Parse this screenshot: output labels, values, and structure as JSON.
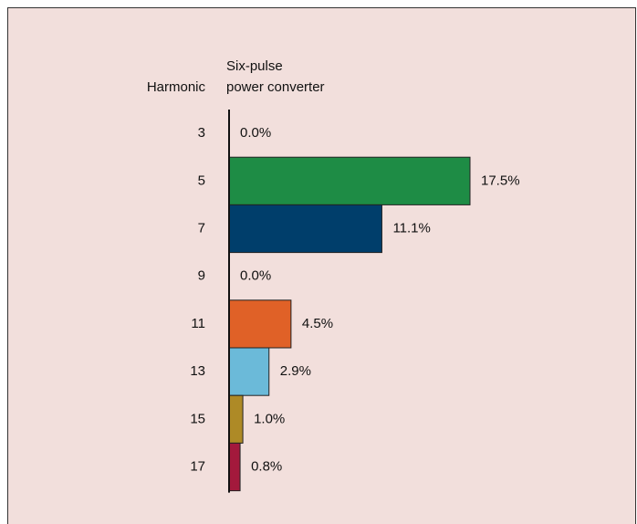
{
  "chart_data": {
    "type": "bar",
    "orientation": "horizontal",
    "category_axis_title": "Harmonic",
    "value_axis_title": [
      "Six-pulse",
      "power converter"
    ],
    "categories": [
      "3",
      "5",
      "7",
      "9",
      "11",
      "13",
      "15",
      "17"
    ],
    "values": [
      0.0,
      17.5,
      11.1,
      0.0,
      4.5,
      2.9,
      1.0,
      0.8
    ],
    "value_labels": [
      "0.0%",
      "17.5%",
      "11.1%",
      "0.0%",
      "4.5%",
      "2.9%",
      "1.0%",
      "0.8%"
    ],
    "colors": [
      "#1e8c45",
      "#1e8c45",
      "#003e6b",
      "#003e6b",
      "#e06127",
      "#6bbad9",
      "#ae8a26",
      "#a3193c"
    ]
  }
}
